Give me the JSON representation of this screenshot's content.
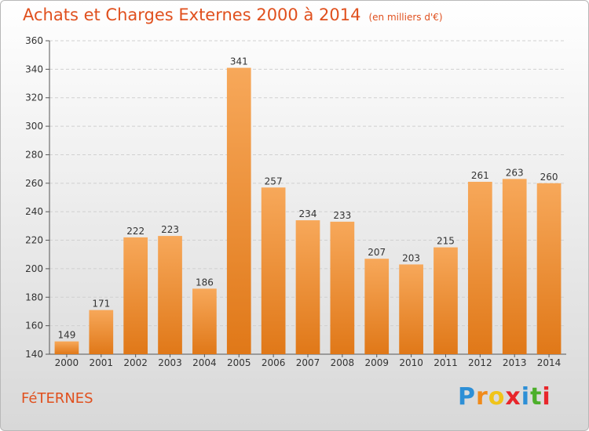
{
  "title": "Achats et Charges Externes 2000 à 2014",
  "unit": "(en milliers d'€)",
  "commune": "FéTERNES",
  "logo": {
    "letters": [
      "P",
      "r",
      "o",
      "x",
      "i",
      "t",
      "i"
    ],
    "colors": [
      "#2d8fd6",
      "#f08a1a",
      "#f0c419",
      "#e8262b",
      "#2d8fd6",
      "#4caf2a",
      "#e8262b"
    ]
  },
  "chart_data": {
    "type": "bar",
    "title": "Achats et Charges Externes 2000 à 2014",
    "subtitle": "(en milliers d'€)",
    "xlabel": "",
    "ylabel": "",
    "categories": [
      "2000",
      "2001",
      "2002",
      "2003",
      "2004",
      "2005",
      "2006",
      "2007",
      "2008",
      "2009",
      "2010",
      "2011",
      "2012",
      "2013",
      "2014"
    ],
    "values": [
      149,
      171,
      222,
      223,
      186,
      341,
      257,
      234,
      233,
      207,
      203,
      215,
      261,
      263,
      260
    ],
    "ylim": [
      140,
      360
    ],
    "yticks": [
      140,
      160,
      180,
      200,
      220,
      240,
      260,
      280,
      300,
      320,
      340,
      360
    ],
    "grid": true,
    "bar_color": "#f0902e"
  }
}
